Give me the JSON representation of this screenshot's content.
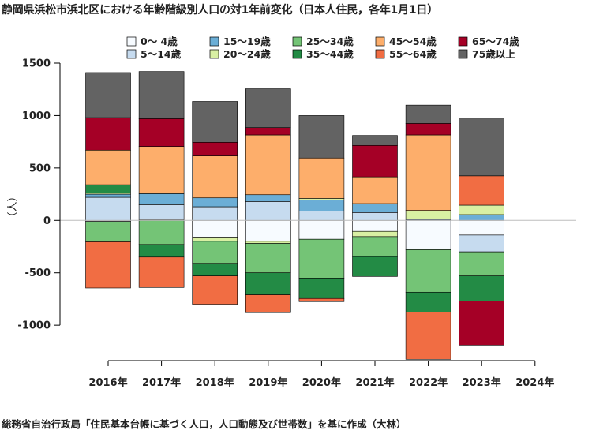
{
  "chart_data": {
    "type": "bar",
    "stacked": true,
    "title": "静岡県浜松市浜北区における年齢階級別人口の対1年前変化（日本人住民，各年1月1日）",
    "ylabel": "（人）",
    "source": "総務省自治行政局「住民基本台帳に基づく人口，人口動態及び世帯数」を基に作成（大林）",
    "ylim": [
      -1300,
      1500
    ],
    "yticks": [
      -1000,
      -500,
      0,
      500,
      1000,
      1500
    ],
    "legend_position": "top",
    "categories": [
      "2016年",
      "2017年",
      "2018年",
      "2019年",
      "2020年",
      "2021年",
      "2022年",
      "2023年",
      "2024年"
    ],
    "series": [
      {
        "name": "0～ 4歳",
        "color": "#f7fbff",
        "values": [
          -10,
          10,
          -160,
          -200,
          -180,
          -105,
          -280,
          -140,
          null
        ]
      },
      {
        "name": "5～14歳",
        "color": "#c6dbef",
        "values": [
          220,
          140,
          130,
          180,
          90,
          75,
          10,
          -160,
          null
        ]
      },
      {
        "name": "15～19歳",
        "color": "#6baed6",
        "values": [
          30,
          105,
          85,
          65,
          105,
          85,
          0,
          55,
          null
        ]
      },
      {
        "name": "20～24歳",
        "color": "#d9f0a3",
        "values": [
          10,
          0,
          -40,
          -20,
          15,
          -50,
          85,
          90,
          null
        ]
      },
      {
        "name": "25～34歳",
        "color": "#74c476",
        "values": [
          -195,
          -230,
          -210,
          -280,
          -370,
          -190,
          -405,
          -230,
          null
        ]
      },
      {
        "name": "35～44歳",
        "color": "#238b45",
        "values": [
          80,
          -120,
          -120,
          -210,
          -195,
          -190,
          -190,
          -240,
          null
        ]
      },
      {
        "name": "45～54歳",
        "color": "#fdae6b",
        "values": [
          330,
          450,
          400,
          570,
          385,
          255,
          720,
          0,
          null
        ]
      },
      {
        "name": "55～64歳",
        "color": "#f16d43",
        "values": [
          -440,
          -290,
          -270,
          -170,
          -30,
          0,
          -450,
          280,
          null
        ]
      },
      {
        "name": "65～74歳",
        "color": "#a50026",
        "values": [
          310,
          265,
          130,
          70,
          0,
          300,
          110,
          -420,
          null
        ]
      },
      {
        "name": "75歳以上",
        "color": "#636363",
        "values": [
          430,
          450,
          390,
          370,
          405,
          95,
          175,
          550,
          null
        ]
      }
    ]
  }
}
